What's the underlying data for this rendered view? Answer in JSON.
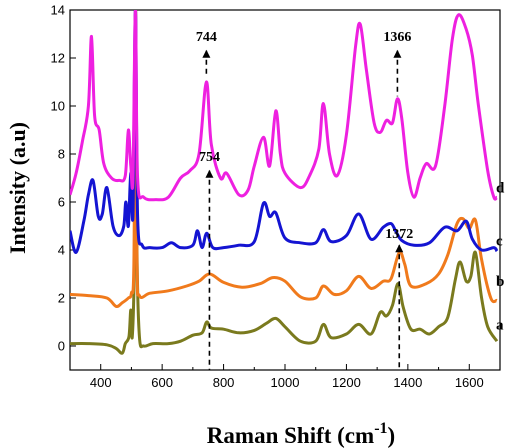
{
  "chart_data": {
    "type": "line",
    "xlabel": "Raman Shift (cm",
    "xlabel_sup": "-1",
    "xlabel_close": ")",
    "ylabel": "Intensity (a.u)",
    "xlim": [
      300,
      1700
    ],
    "ylim": [
      -1,
      14
    ],
    "x_ticks": [
      400,
      600,
      800,
      1000,
      1200,
      1400,
      1600
    ],
    "y_ticks": [
      0,
      2,
      4,
      6,
      8,
      10,
      12,
      14
    ],
    "grid": false,
    "series": [
      {
        "name": "a",
        "color": "#7a7a1e",
        "label_y": 0.9,
        "points": [
          [
            300,
            0.1
          ],
          [
            360,
            0.1
          ],
          [
            420,
            0.05
          ],
          [
            450,
            -0.1
          ],
          [
            470,
            -0.3
          ],
          [
            480,
            0.1
          ],
          [
            492,
            0.4
          ],
          [
            498,
            1.5
          ],
          [
            503,
            0.4
          ],
          [
            510,
            4
          ],
          [
            514,
            14
          ],
          [
            518,
            4
          ],
          [
            526,
            0.4
          ],
          [
            540,
            0
          ],
          [
            570,
            0.1
          ],
          [
            620,
            0.1
          ],
          [
            660,
            0.2
          ],
          [
            700,
            0.45
          ],
          [
            730,
            0.55
          ],
          [
            745,
            1.0
          ],
          [
            760,
            0.75
          ],
          [
            800,
            0.7
          ],
          [
            850,
            0.55
          ],
          [
            900,
            0.65
          ],
          [
            940,
            0.95
          ],
          [
            970,
            1.15
          ],
          [
            1000,
            0.8
          ],
          [
            1050,
            0.2
          ],
          [
            1100,
            0.2
          ],
          [
            1125,
            0.9
          ],
          [
            1150,
            0.35
          ],
          [
            1200,
            0.5
          ],
          [
            1240,
            0.9
          ],
          [
            1280,
            0.5
          ],
          [
            1310,
            1.4
          ],
          [
            1330,
            1.25
          ],
          [
            1350,
            1.7
          ],
          [
            1368,
            2.6
          ],
          [
            1385,
            1.6
          ],
          [
            1410,
            0.7
          ],
          [
            1440,
            0.7
          ],
          [
            1470,
            0.5
          ],
          [
            1500,
            0.8
          ],
          [
            1530,
            1.2
          ],
          [
            1555,
            2.8
          ],
          [
            1570,
            3.5
          ],
          [
            1590,
            2.7
          ],
          [
            1605,
            2.9
          ],
          [
            1620,
            3.9
          ],
          [
            1640,
            2.0
          ],
          [
            1660,
            0.8
          ],
          [
            1690,
            0.2
          ]
        ]
      },
      {
        "name": "b",
        "color": "#f07a1c",
        "label_y": 2.7,
        "points": [
          [
            300,
            2.15
          ],
          [
            360,
            2.1
          ],
          [
            420,
            2.0
          ],
          [
            450,
            1.65
          ],
          [
            470,
            1.8
          ],
          [
            490,
            2.0
          ],
          [
            500,
            2.2
          ],
          [
            508,
            3.5
          ],
          [
            513,
            13.8
          ],
          [
            518,
            3.5
          ],
          [
            526,
            2.1
          ],
          [
            560,
            2.2
          ],
          [
            620,
            2.3
          ],
          [
            680,
            2.5
          ],
          [
            720,
            2.7
          ],
          [
            755,
            3.0
          ],
          [
            800,
            2.65
          ],
          [
            860,
            2.45
          ],
          [
            920,
            2.6
          ],
          [
            960,
            2.85
          ],
          [
            1000,
            2.7
          ],
          [
            1050,
            2.05
          ],
          [
            1100,
            2.0
          ],
          [
            1125,
            2.5
          ],
          [
            1160,
            2.15
          ],
          [
            1200,
            2.3
          ],
          [
            1240,
            2.9
          ],
          [
            1280,
            2.4
          ],
          [
            1320,
            2.7
          ],
          [
            1345,
            2.8
          ],
          [
            1372,
            3.9
          ],
          [
            1390,
            3.4
          ],
          [
            1410,
            2.5
          ],
          [
            1460,
            2.6
          ],
          [
            1500,
            3.0
          ],
          [
            1530,
            3.8
          ],
          [
            1560,
            5.1
          ],
          [
            1580,
            5.3
          ],
          [
            1600,
            4.9
          ],
          [
            1620,
            5.25
          ],
          [
            1640,
            3.6
          ],
          [
            1670,
            2.0
          ],
          [
            1690,
            1.9
          ]
        ]
      },
      {
        "name": "c",
        "color": "#1414d2",
        "label_y": 4.4,
        "points": [
          [
            300,
            4.8
          ],
          [
            320,
            3.9
          ],
          [
            345,
            5.2
          ],
          [
            360,
            6.3
          ],
          [
            375,
            6.9
          ],
          [
            392,
            5.4
          ],
          [
            405,
            5.5
          ],
          [
            420,
            6.6
          ],
          [
            440,
            5.0
          ],
          [
            460,
            4.6
          ],
          [
            475,
            5.0
          ],
          [
            482,
            6.0
          ],
          [
            490,
            5.0
          ],
          [
            498,
            7.2
          ],
          [
            505,
            5.5
          ],
          [
            513,
            14
          ],
          [
            520,
            5.4
          ],
          [
            535,
            4.2
          ],
          [
            560,
            4.1
          ],
          [
            600,
            4.1
          ],
          [
            630,
            4.3
          ],
          [
            660,
            4.1
          ],
          [
            700,
            4.2
          ],
          [
            715,
            4.8
          ],
          [
            730,
            4.1
          ],
          [
            745,
            4.7
          ],
          [
            765,
            4.1
          ],
          [
            800,
            4.1
          ],
          [
            850,
            4.2
          ],
          [
            900,
            4.35
          ],
          [
            930,
            5.95
          ],
          [
            950,
            5.4
          ],
          [
            970,
            5.55
          ],
          [
            1000,
            4.5
          ],
          [
            1050,
            4.3
          ],
          [
            1100,
            4.3
          ],
          [
            1125,
            4.85
          ],
          [
            1150,
            4.35
          ],
          [
            1200,
            4.6
          ],
          [
            1240,
            5.5
          ],
          [
            1280,
            4.45
          ],
          [
            1320,
            4.95
          ],
          [
            1345,
            5.1
          ],
          [
            1360,
            4.8
          ],
          [
            1380,
            4.4
          ],
          [
            1420,
            4.2
          ],
          [
            1470,
            4.3
          ],
          [
            1520,
            4.95
          ],
          [
            1560,
            4.8
          ],
          [
            1590,
            5.2
          ],
          [
            1610,
            4.45
          ],
          [
            1640,
            4.0
          ],
          [
            1680,
            4.1
          ],
          [
            1690,
            3.95
          ]
        ]
      },
      {
        "name": "d",
        "color": "#ee20e0",
        "label_y": 6.6,
        "points": [
          [
            300,
            6.3
          ],
          [
            320,
            7.2
          ],
          [
            340,
            8.5
          ],
          [
            360,
            10.0
          ],
          [
            370,
            12.9
          ],
          [
            380,
            9.6
          ],
          [
            395,
            9.0
          ],
          [
            410,
            7.6
          ],
          [
            435,
            7.0
          ],
          [
            460,
            6.9
          ],
          [
            480,
            7.1
          ],
          [
            490,
            9.0
          ],
          [
            498,
            7.5
          ],
          [
            505,
            7.0
          ],
          [
            513,
            14
          ],
          [
            520,
            7.0
          ],
          [
            540,
            6.2
          ],
          [
            580,
            6.1
          ],
          [
            620,
            6.2
          ],
          [
            660,
            7.0
          ],
          [
            690,
            7.3
          ],
          [
            720,
            8.0
          ],
          [
            744,
            11.0
          ],
          [
            760,
            8.4
          ],
          [
            790,
            7.0
          ],
          [
            810,
            7.2
          ],
          [
            850,
            6.3
          ],
          [
            880,
            6.5
          ],
          [
            900,
            7.5
          ],
          [
            930,
            8.7
          ],
          [
            950,
            7.5
          ],
          [
            970,
            9.8
          ],
          [
            985,
            8.0
          ],
          [
            1000,
            7.2
          ],
          [
            1050,
            6.6
          ],
          [
            1080,
            7.1
          ],
          [
            1110,
            8.2
          ],
          [
            1125,
            10.1
          ],
          [
            1145,
            8.0
          ],
          [
            1170,
            7.1
          ],
          [
            1200,
            8.8
          ],
          [
            1230,
            12.5
          ],
          [
            1245,
            13.4
          ],
          [
            1265,
            11.5
          ],
          [
            1290,
            9.3
          ],
          [
            1310,
            8.9
          ],
          [
            1330,
            9.4
          ],
          [
            1350,
            9.3
          ],
          [
            1366,
            10.3
          ],
          [
            1380,
            9.5
          ],
          [
            1400,
            7.2
          ],
          [
            1420,
            6.2
          ],
          [
            1440,
            7.0
          ],
          [
            1460,
            7.6
          ],
          [
            1490,
            7.5
          ],
          [
            1520,
            10.0
          ],
          [
            1545,
            12.8
          ],
          [
            1565,
            13.8
          ],
          [
            1590,
            13.2
          ],
          [
            1610,
            12.1
          ],
          [
            1630,
            10.0
          ],
          [
            1660,
            7.3
          ],
          [
            1680,
            6.2
          ],
          [
            1690,
            6.2
          ]
        ]
      }
    ],
    "annotations": [
      {
        "text": "744",
        "x": 744,
        "y_line_top": 12.3,
        "y_line_bottom": 11.2,
        "y_text": 12.7
      },
      {
        "text": "1366",
        "x": 1366,
        "y_line_top": 12.3,
        "y_line_bottom": 10.4,
        "y_text": 12.7
      },
      {
        "text": "754",
        "x": 754,
        "y_line_top": 7.3,
        "y_line_bottom": -1.0,
        "y_text": 7.7,
        "dashed_from": 3.2
      },
      {
        "text": "1372",
        "x": 1372,
        "y_line_top": 4.2,
        "y_line_bottom": -1.0,
        "y_text": 4.5,
        "dashed_from": 3.8
      }
    ]
  }
}
